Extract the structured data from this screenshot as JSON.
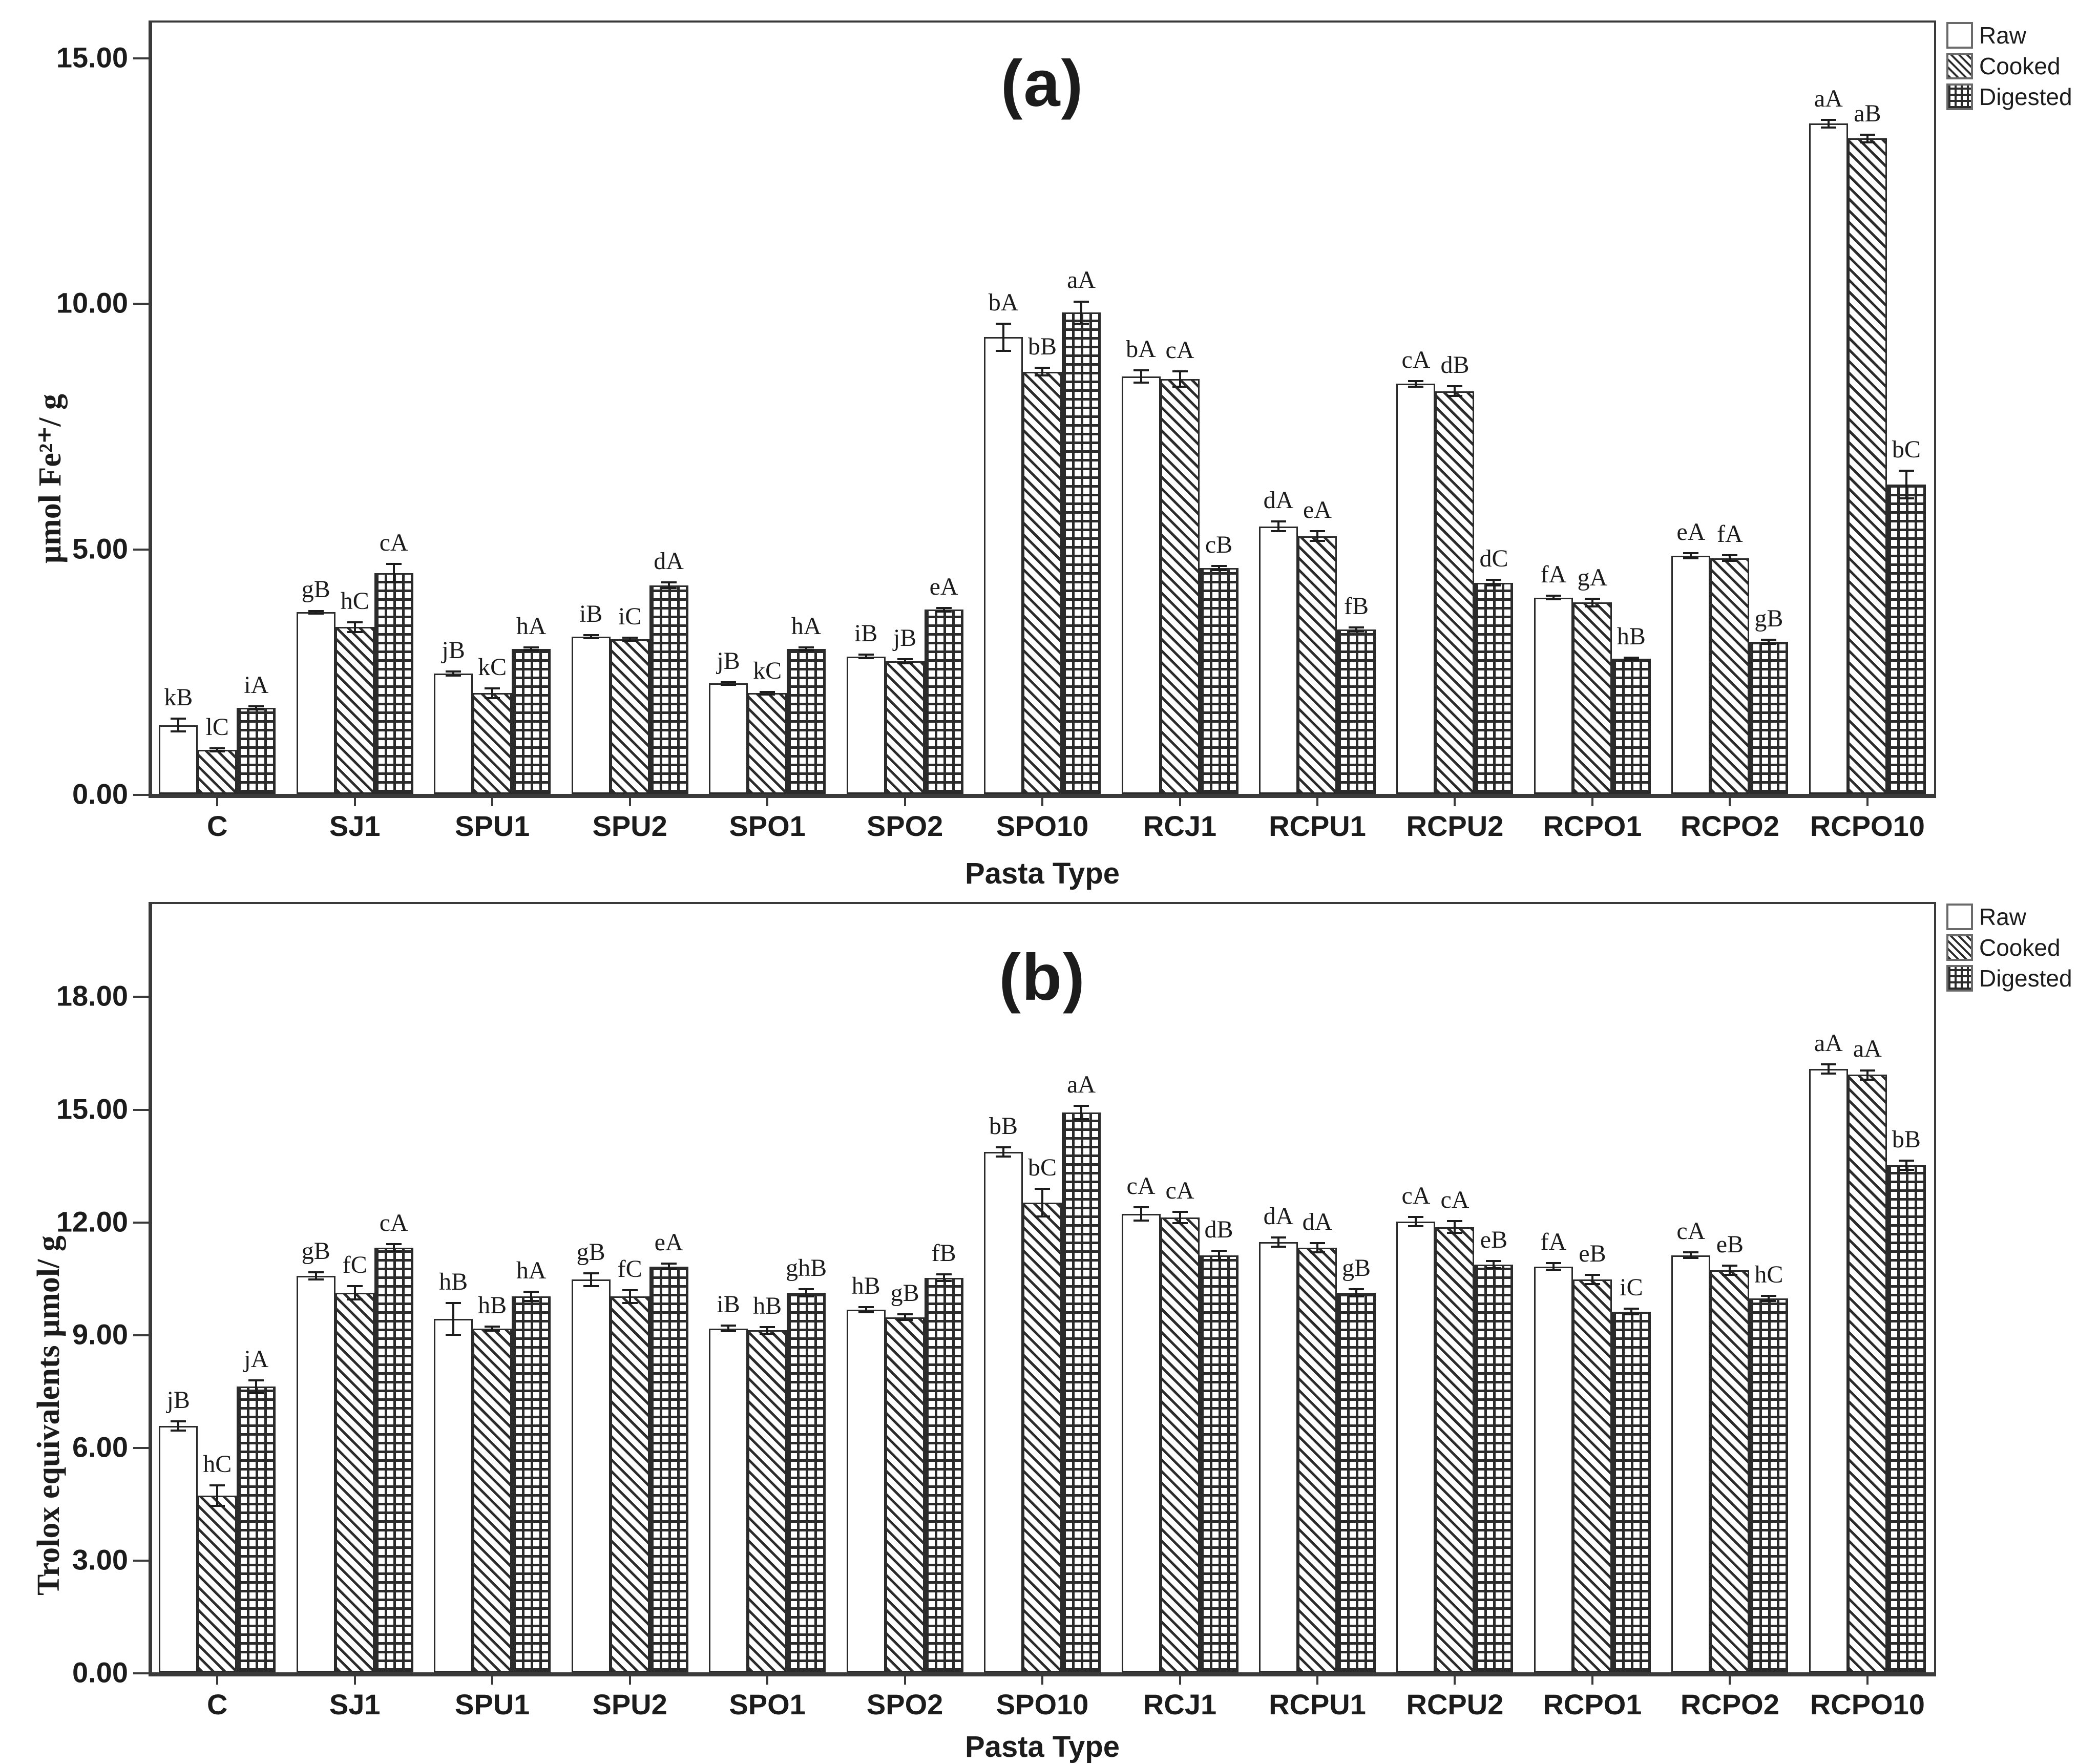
{
  "figure": {
    "background": "#ffffff",
    "ink": "#1c1c1c",
    "axis_color": "#3a3a3a"
  },
  "legend": {
    "position": "top-right-outside",
    "items": [
      {
        "label": "Raw",
        "pattern": "plain"
      },
      {
        "label": "Cooked",
        "pattern": "diag"
      },
      {
        "label": "Digested",
        "pattern": "grid"
      }
    ]
  },
  "chart_data": [
    {
      "type": "bar",
      "panel_label": "(a)",
      "ylabel": "μmol Fe²⁺/ g",
      "xlabel": "Pasta Type",
      "ylim": [
        0,
        15.75
      ],
      "yticks": [
        0,
        5,
        10,
        15
      ],
      "ytick_labels": [
        "0.00",
        "5.00",
        "10.00",
        "15.00"
      ],
      "grid": false,
      "categories": [
        "C",
        "SJ1",
        "SPU1",
        "SPU2",
        "SPO1",
        "SPO2",
        "SPO10",
        "RCJ1",
        "RCPU1",
        "RCPU2",
        "RCPO1",
        "RCPO2",
        "RCPO10"
      ],
      "series": [
        {
          "name": "Raw",
          "pattern": "plain",
          "values": [
            1.4,
            3.7,
            2.45,
            3.2,
            2.25,
            2.8,
            9.3,
            8.5,
            5.45,
            8.35,
            4.0,
            4.85,
            13.65
          ],
          "errors": [
            0.15,
            0.05,
            0.06,
            0.05,
            0.05,
            0.06,
            0.3,
            0.15,
            0.12,
            0.08,
            0.06,
            0.07,
            0.1
          ],
          "letters": [
            "kB",
            "gB",
            "jB",
            "iB",
            "jB",
            "iB",
            "bA",
            "bA",
            "dA",
            "cA",
            "fA",
            "eA",
            "aA"
          ]
        },
        {
          "name": "Cooked",
          "pattern": "diag",
          "values": [
            0.9,
            3.4,
            2.05,
            3.15,
            2.05,
            2.7,
            8.6,
            8.45,
            5.25,
            8.2,
            3.9,
            4.8,
            13.35
          ],
          "errors": [
            0.05,
            0.12,
            0.12,
            0.05,
            0.05,
            0.06,
            0.1,
            0.18,
            0.12,
            0.12,
            0.1,
            0.08,
            0.1
          ],
          "letters": [
            "lC",
            "hC",
            "kC",
            "iC",
            "kC",
            "jB",
            "bB",
            "cA",
            "eA",
            "dB",
            "gA",
            "fA",
            "aB"
          ]
        },
        {
          "name": "Digested",
          "pattern": "grid",
          "values": [
            1.75,
            4.5,
            2.95,
            4.25,
            2.95,
            3.75,
            9.8,
            4.6,
            3.35,
            4.3,
            2.75,
            3.1,
            6.3
          ],
          "errors": [
            0.05,
            0.2,
            0.05,
            0.08,
            0.05,
            0.06,
            0.25,
            0.06,
            0.06,
            0.08,
            0.05,
            0.06,
            0.3
          ],
          "letters": [
            "iA",
            "cA",
            "hA",
            "dA",
            "hA",
            "eA",
            "aA",
            "cB",
            "fB",
            "dC",
            "hB",
            "gB",
            "bC"
          ]
        }
      ]
    },
    {
      "type": "bar",
      "panel_label": "(b)",
      "ylabel": "Trolox equivalents μmol/ g",
      "xlabel": "Pasta Type",
      "ylim": [
        0,
        20.5
      ],
      "yticks": [
        0,
        3,
        6,
        9,
        12,
        15,
        18
      ],
      "ytick_labels": [
        "0.00",
        "3.00",
        "6.00",
        "9.00",
        "12.00",
        "15.00",
        "18.00"
      ],
      "grid": false,
      "categories": [
        "C",
        "SJ1",
        "SPU1",
        "SPU2",
        "SPO1",
        "SPO2",
        "SPO10",
        "RCJ1",
        "RCPU1",
        "RCPU2",
        "RCPO1",
        "RCPO2",
        "RCPO10"
      ],
      "series": [
        {
          "name": "Raw",
          "pattern": "plain",
          "values": [
            6.55,
            10.55,
            9.4,
            10.45,
            9.15,
            9.65,
            13.85,
            12.2,
            11.45,
            12.0,
            10.8,
            11.1,
            16.05
          ],
          "errors": [
            0.15,
            0.12,
            0.45,
            0.2,
            0.1,
            0.1,
            0.15,
            0.2,
            0.15,
            0.15,
            0.12,
            0.1,
            0.15
          ],
          "letters": [
            "jB",
            "gB",
            "hB",
            "gB",
            "iB",
            "hB",
            "bB",
            "cA",
            "dA",
            "cA",
            "fA",
            "cA",
            "aA"
          ]
        },
        {
          "name": "Cooked",
          "pattern": "diag",
          "values": [
            4.7,
            10.1,
            9.15,
            10.0,
            9.1,
            9.45,
            12.5,
            12.1,
            11.3,
            11.85,
            10.45,
            10.7,
            15.9
          ],
          "errors": [
            0.3,
            0.2,
            0.08,
            0.2,
            0.12,
            0.1,
            0.4,
            0.18,
            0.15,
            0.18,
            0.15,
            0.15,
            0.15
          ],
          "letters": [
            "hC",
            "fC",
            "hB",
            "fC",
            "hB",
            "gB",
            "bC",
            "cA",
            "dA",
            "cA",
            "eB",
            "eB",
            "aA"
          ]
        },
        {
          "name": "Digested",
          "pattern": "grid",
          "values": [
            7.6,
            11.3,
            10.0,
            10.8,
            10.1,
            10.5,
            14.9,
            11.1,
            10.1,
            10.85,
            9.6,
            9.95,
            13.5
          ],
          "errors": [
            0.2,
            0.12,
            0.15,
            0.1,
            0.12,
            0.12,
            0.2,
            0.15,
            0.12,
            0.12,
            0.1,
            0.1,
            0.15
          ],
          "letters": [
            "jA",
            "cA",
            "hA",
            "eA",
            "ghB",
            "fB",
            "aA",
            "dB",
            "gB",
            "eB",
            "iC",
            "hC",
            "bB"
          ]
        }
      ]
    }
  ]
}
